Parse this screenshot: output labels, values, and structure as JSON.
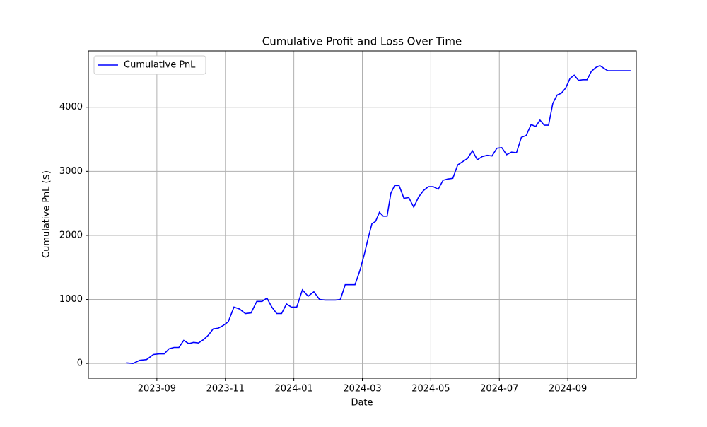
{
  "chart_data": {
    "type": "line",
    "title": "Cumulative Profit and Loss Over Time",
    "x_label": "Date",
    "y_label": "Cumulative PnL ($)",
    "x": [
      "2023-08",
      "2023-08",
      "2023-08",
      "2023-08",
      "2023-08",
      "2023-09",
      "2023-09",
      "2023-09",
      "2023-09",
      "2023-09",
      "2023-09",
      "2023-09",
      "2023-10",
      "2023-10",
      "2023-10",
      "2023-10",
      "2023-10",
      "2023-10",
      "2023-10",
      "2023-11",
      "2023-11",
      "2023-11",
      "2023-11",
      "2023-11",
      "2023-11",
      "2023-12",
      "2023-12",
      "2023-12",
      "2023-12",
      "2023-12",
      "2023-12",
      "2023-12",
      "2024-01",
      "2024-01",
      "2024-01",
      "2024-01",
      "2024-01",
      "2024-01",
      "2024-02",
      "2024-02",
      "2024-02",
      "2024-02",
      "2024-02",
      "2024-02",
      "2024-02",
      "2024-03",
      "2024-03",
      "2024-03",
      "2024-03",
      "2024-03",
      "2024-03",
      "2024-03",
      "2024-03",
      "2024-03",
      "2024-04",
      "2024-04",
      "2024-04",
      "2024-04",
      "2024-04",
      "2024-04",
      "2024-04",
      "2024-05",
      "2024-05",
      "2024-05",
      "2024-05",
      "2024-05",
      "2024-05",
      "2024-05",
      "2024-06",
      "2024-06",
      "2024-06",
      "2024-06",
      "2024-06",
      "2024-06",
      "2024-06",
      "2024-07",
      "2024-07",
      "2024-07",
      "2024-07",
      "2024-07",
      "2024-07",
      "2024-07",
      "2024-08",
      "2024-08",
      "2024-08",
      "2024-08",
      "2024-08",
      "2024-08",
      "2024-08",
      "2024-08",
      "2024-09",
      "2024-09",
      "2024-09",
      "2024-09",
      "2024-09",
      "2024-09",
      "2024-09",
      "2024-09",
      "2024-10",
      "2024-10",
      "2024-10"
    ],
    "series": [
      {
        "name": "Cumulative PnL",
        "color": "#0000ff",
        "values": [
          10,
          0,
          50,
          60,
          140,
          150,
          150,
          230,
          250,
          250,
          360,
          310,
          330,
          320,
          370,
          440,
          540,
          550,
          590,
          650,
          880,
          850,
          780,
          790,
          970,
          970,
          1020,
          880,
          780,
          780,
          930,
          880,
          880,
          1150,
          1050,
          1120,
          1000,
          990,
          990,
          990,
          1000,
          1230,
          1230,
          1230,
          1450,
          1700,
          1950,
          2180,
          2220,
          2360,
          2300,
          2300,
          2660,
          2780,
          2780,
          2580,
          2590,
          2440,
          2600,
          2700,
          2760,
          2760,
          2720,
          2860,
          2880,
          2890,
          3100,
          3150,
          3200,
          3320,
          3180,
          3230,
          3250,
          3240,
          3360,
          3370,
          3260,
          3300,
          3290,
          3530,
          3560,
          3730,
          3700,
          3800,
          3720,
          3720,
          4060,
          4190,
          4220,
          4300,
          4450,
          4500,
          4420,
          4430,
          4430,
          4560,
          4620,
          4650,
          4570,
          4570,
          4570
        ]
      }
    ],
    "xlim": [
      "2023-07",
      "2024-11"
    ],
    "xticks": [
      "2023-09",
      "2023-11",
      "2024-01",
      "2024-03",
      "2024-05",
      "2024-07",
      "2024-09"
    ],
    "ylim": [
      -230,
      4880
    ],
    "yticks": [
      0,
      1000,
      2000,
      3000,
      4000
    ],
    "grid": true,
    "legend": "upper left"
  }
}
